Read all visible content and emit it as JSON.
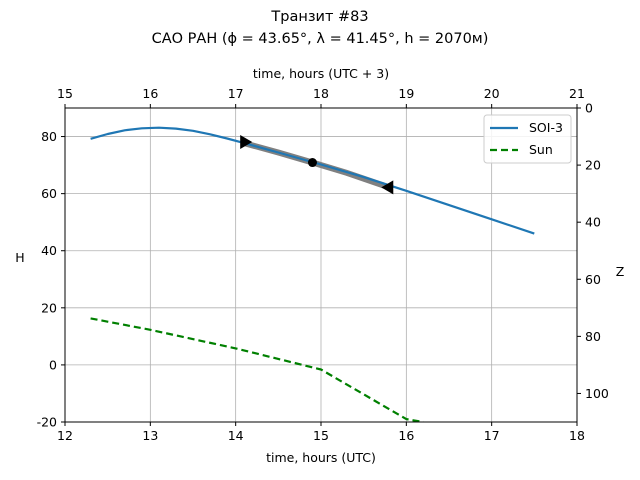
{
  "chart_data": {
    "type": "line",
    "title": "Транзит #83",
    "subtitle": "САО РАН (ϕ = 43.65°, λ = 41.45°, h = 2070м)",
    "xlabel": "time, hours (UTC)",
    "ylabel": "H",
    "xlabel_top": "time, hours (UTC + 3)",
    "ylabel_right": "Z",
    "xlim": [
      12,
      18
    ],
    "ylim": [
      -20,
      90
    ],
    "xticks": [
      "12",
      "13",
      "14",
      "15",
      "16",
      "17",
      "18"
    ],
    "yticks": [
      "-20",
      "0",
      "20",
      "40",
      "60",
      "80"
    ],
    "xlim_top": [
      15,
      21
    ],
    "xticks_top": [
      "15",
      "16",
      "17",
      "18",
      "19",
      "20",
      "21"
    ],
    "ylim_right_inverted": [
      0,
      110
    ],
    "yticks_right": [
      "0",
      "20",
      "40",
      "60",
      "80",
      "100"
    ],
    "grid": true,
    "legend_position": "top-right",
    "series": [
      {
        "name": "SOI-3",
        "color": "#1f77b4",
        "style": "solid",
        "x": [
          12.3,
          12.5,
          12.7,
          12.9,
          13.1,
          13.3,
          13.5,
          13.7,
          13.9,
          14.1,
          14.5,
          15.0,
          15.5,
          16.0,
          16.5,
          17.0,
          17.5
        ],
        "y": [
          79.2,
          80.9,
          82.2,
          82.9,
          83.1,
          82.8,
          82.0,
          80.8,
          79.3,
          77.7,
          74.4,
          70.2,
          65.8,
          61.0,
          56.0,
          51.0,
          46.0
        ]
      },
      {
        "name": "Sun",
        "color": "#008000",
        "style": "dashed",
        "x": [
          12.3,
          13.0,
          14.0,
          15.0,
          16.0,
          16.2
        ],
        "y": [
          16.3,
          12.3,
          5.8,
          -1.6,
          -19.0,
          -20.0
        ]
      }
    ],
    "transit": {
      "color": "#808080",
      "x": [
        14.1,
        14.5,
        14.9,
        15.3,
        15.8
      ],
      "y": [
        77.7,
        74.4,
        70.9,
        67.3,
        62.2
      ],
      "start_marker": {
        "x": 14.1,
        "y": 78.1
      },
      "mid_marker": {
        "x": 14.9,
        "y": 70.9
      },
      "end_marker": {
        "x": 15.8,
        "y": 62.2
      }
    }
  }
}
